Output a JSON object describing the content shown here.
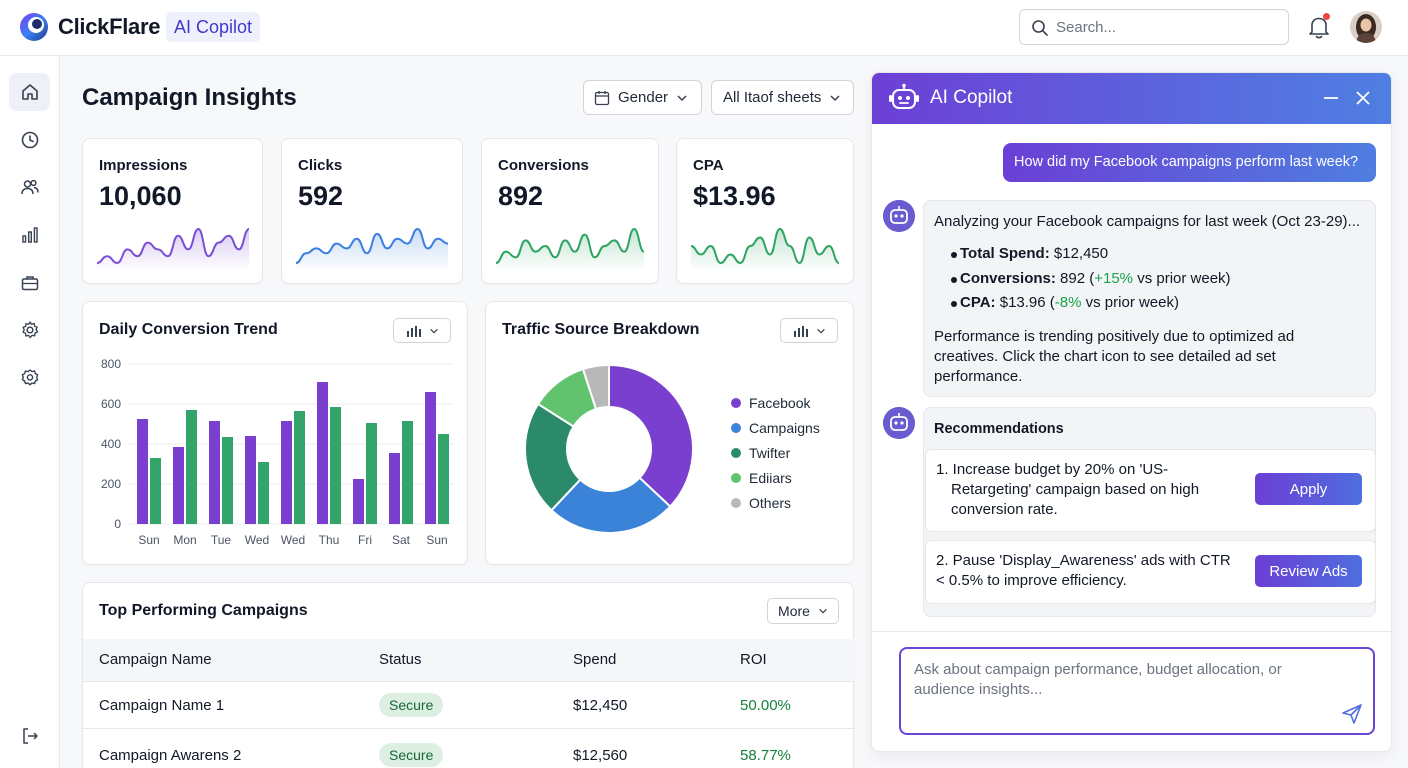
{
  "header": {
    "brand": "ClickFlare",
    "badge": "AI Copilot",
    "search_placeholder": "Search...",
    "icons": {
      "logo": "clickflare-logo-icon",
      "search": "search-icon",
      "notifications": "bell-icon",
      "avatar": "user-avatar"
    }
  },
  "sidebar": {
    "items": [
      {
        "icon": "home-icon",
        "active": true
      },
      {
        "icon": "clock-icon"
      },
      {
        "icon": "users-icon"
      },
      {
        "icon": "bar-chart-icon"
      },
      {
        "icon": "briefcase-icon"
      },
      {
        "icon": "settings-icon"
      },
      {
        "icon": "gear-badge-icon"
      }
    ],
    "logout_icon": "logout-icon"
  },
  "page": {
    "title": "Campaign Insights",
    "filters": [
      {
        "label": "Gender",
        "icon": "calendar-icon"
      },
      {
        "label": "All Itaof sheets"
      }
    ]
  },
  "kpis": [
    {
      "label": "Impressions",
      "value": "10,060",
      "color": "#7c4fd6",
      "trend": [
        3,
        4,
        3,
        5,
        4,
        6,
        5,
        4,
        7,
        5,
        8,
        4,
        6,
        7,
        5,
        8
      ]
    },
    {
      "label": "Clicks",
      "value": "592",
      "color": "#3b7fe0",
      "trend": [
        2,
        4,
        5,
        4,
        6,
        5,
        7,
        4,
        8,
        5,
        7,
        6,
        9,
        5,
        7,
        6
      ]
    },
    {
      "label": "Conversions",
      "value": "892",
      "color": "#2fa563",
      "trend": [
        3,
        5,
        4,
        7,
        5,
        6,
        4,
        7,
        5,
        8,
        4,
        6,
        7,
        5,
        9,
        5
      ]
    },
    {
      "label": "CPA",
      "value": "$13.96",
      "color": "#2fa563",
      "trend": [
        6,
        5,
        6,
        4,
        5,
        4,
        6,
        7,
        5,
        8,
        6,
        4,
        7,
        5,
        6,
        4
      ]
    }
  ],
  "chart_data": [
    {
      "type": "bar",
      "title": "Daily Conversion Trend",
      "categories": [
        "Sun",
        "Mon",
        "Tue",
        "Wed",
        "Wed",
        "Thu",
        "Fri",
        "Sat",
        "Sun"
      ],
      "series": [
        {
          "values": [
            525,
            385,
            515,
            440,
            515,
            710,
            225,
            355,
            660
          ],
          "color": "#7a3fce"
        },
        {
          "values": [
            330,
            570,
            435,
            310,
            565,
            585,
            505,
            515,
            450
          ],
          "color": "#33a56a"
        }
      ],
      "yticks": [
        "0",
        "200",
        "400",
        "600",
        "800"
      ],
      "ylim": [
        0,
        800
      ],
      "grid": true
    },
    {
      "type": "pie",
      "title": "Traffic Source Breakdown",
      "labels": [
        "Facebook",
        "Campaigns",
        "Twifter",
        "Ediiars",
        "Others"
      ],
      "values": [
        37,
        25,
        22,
        11,
        5
      ],
      "colors": [
        "#7a3fce",
        "#3b82d9",
        "#2a8a6a",
        "#62c36f",
        "#b8b8b8"
      ],
      "legend": "right"
    }
  ],
  "campaigns": {
    "title": "Top Performing Campaigns",
    "more_label": "More",
    "columns": [
      "Campaign Name",
      "Status",
      "Spend",
      "ROI"
    ],
    "rows": [
      {
        "name": "Campaign Name 1",
        "status": "Secure",
        "spend": "$12,450",
        "roi": "50.00%"
      },
      {
        "name": "Campaign Awarens 2",
        "status": "Secure",
        "spend": "$12,560",
        "roi": "58.77%"
      }
    ]
  },
  "copilot": {
    "title": "AI Copilot",
    "user_message": "How did my Facebook campaigns perform last week?",
    "analysis": {
      "intro": "Analyzing your Facebook campaigns for last week (Oct 23-29)...",
      "bullets": [
        {
          "label": "Total Spend:",
          "value": "$12,450",
          "delta": "",
          "suffix": ""
        },
        {
          "label": "Conversions:",
          "value": "892 (",
          "delta": "+15%",
          "suffix": " vs prior week)"
        },
        {
          "label": "CPA:",
          "value": "$13.96 (",
          "delta": "-8%",
          "suffix": " vs prior week)"
        }
      ],
      "summary_lines": [
        "Performance is trending positively due to optimized ad",
        "creatives. Click the chart icon to see detailed ad set",
        "performance."
      ]
    },
    "recommendations": {
      "title": "Recommendations",
      "items": [
        {
          "lines": [
            "1. Increase budget by 20% on 'US-",
            "Retargeting' campaign based on high",
            "conversion rate."
          ],
          "button": "Apply"
        },
        {
          "lines": [
            "2. Pause 'Display_Awareness' ads with CTR",
            "< 0.5% to improve efficiency."
          ],
          "button": "Review Ads"
        }
      ]
    },
    "input_placeholder": "Ask about campaign performance, budget allocation, or audience insights...",
    "icons": {
      "bot": "robot-icon",
      "minimize": "minimize-icon",
      "close": "close-icon",
      "send": "send-icon"
    }
  }
}
